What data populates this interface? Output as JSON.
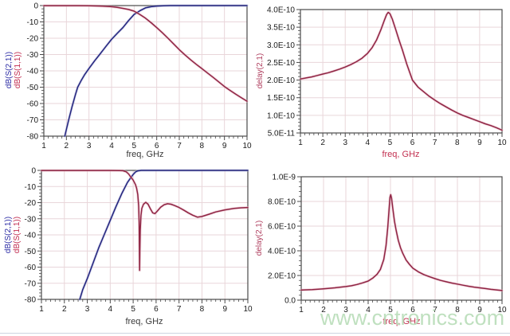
{
  "watermark": {
    "text": "www.cntronics.com",
    "color": "#b9ddb9"
  },
  "chart_data": [
    {
      "type": "line",
      "title": "",
      "xlabel": "freq, GHz",
      "xlabel_color": "#3a3a3a",
      "ylabels": [
        {
          "text": "dB(S(2,1))",
          "color": "#2a2aa4"
        },
        {
          "text": "dB(S(1,1))",
          "color": "#c02a4e"
        }
      ],
      "xlim": [
        1,
        10
      ],
      "ylim": [
        -80,
        0
      ],
      "xticks": [
        1,
        2,
        3,
        4,
        5,
        6,
        7,
        8,
        9,
        10
      ],
      "xtick_labels": [
        "1",
        "2",
        "3",
        "4",
        "5",
        "6",
        "7",
        "8",
        "9",
        "10"
      ],
      "yticks": [
        0,
        -10,
        -20,
        -30,
        -40,
        -50,
        -60,
        -70,
        -80
      ],
      "ytick_labels": [
        "0",
        "-10",
        "-20",
        "-30",
        "-40",
        "-50",
        "-60",
        "-70",
        "-80"
      ],
      "xminor": 0.2,
      "yminor": 2,
      "grid": true,
      "legend": "none",
      "series": [
        {
          "name": "dB(S(2,1))",
          "color": "#23237d",
          "halo": "#b0b6dc",
          "points": [
            [
              1.93,
              -80
            ],
            [
              2.1,
              -70
            ],
            [
              2.25,
              -62
            ],
            [
              2.4,
              -54.5
            ],
            [
              2.5,
              -50
            ],
            [
              2.65,
              -46
            ],
            [
              2.8,
              -42.5
            ],
            [
              3,
              -38.5
            ],
            [
              3.25,
              -33.8
            ],
            [
              3.5,
              -29.5
            ],
            [
              3.75,
              -25
            ],
            [
              4,
              -20.7
            ],
            [
              4.25,
              -17
            ],
            [
              4.5,
              -13.5
            ],
            [
              4.75,
              -9.2
            ],
            [
              5,
              -5.4
            ],
            [
              5.25,
              -3.2
            ],
            [
              5.5,
              -1.4
            ],
            [
              5.75,
              -0.7
            ],
            [
              6,
              -0.3
            ],
            [
              6.3,
              -0.1
            ],
            [
              6.6,
              0
            ],
            [
              7,
              0
            ],
            [
              8,
              0
            ],
            [
              9,
              0
            ],
            [
              10,
              0
            ]
          ]
        },
        {
          "name": "dB(S(1,1))",
          "color": "#8e2443",
          "halo": "#e7afc0",
          "points": [
            [
              1,
              -0.05
            ],
            [
              2,
              -0.05
            ],
            [
              2.5,
              -0.05
            ],
            [
              3,
              -0.1
            ],
            [
              3.5,
              -0.3
            ],
            [
              4,
              -0.7
            ],
            [
              4.25,
              -1.1
            ],
            [
              4.5,
              -1.7
            ],
            [
              4.75,
              -2.4
            ],
            [
              5,
              -3.4
            ],
            [
              5.25,
              -5.4
            ],
            [
              5.5,
              -7.7
            ],
            [
              5.75,
              -10.5
            ],
            [
              6,
              -13.5
            ],
            [
              6.25,
              -16.7
            ],
            [
              6.5,
              -20
            ],
            [
              6.75,
              -23.5
            ],
            [
              7,
              -27
            ],
            [
              7.25,
              -30.2
            ],
            [
              7.5,
              -33.2
            ],
            [
              7.75,
              -36
            ],
            [
              8,
              -38.6
            ],
            [
              8.25,
              -41.3
            ],
            [
              8.5,
              -44
            ],
            [
              8.75,
              -46.8
            ],
            [
              9,
              -49.6
            ],
            [
              9.25,
              -52
            ],
            [
              9.5,
              -54.3
            ],
            [
              9.75,
              -56.5
            ],
            [
              10,
              -58.6
            ]
          ]
        }
      ]
    },
    {
      "type": "line",
      "title": "",
      "xlabel": "freq, GHz",
      "xlabel_color": "#c23050",
      "ylabels": [
        {
          "text": "delay(2,1)",
          "color": "#b04060"
        }
      ],
      "xlim": [
        1,
        10
      ],
      "ylim": [
        5e-11,
        4e-10
      ],
      "xticks": [
        1,
        2,
        3,
        4,
        5,
        6,
        7,
        8,
        9,
        10
      ],
      "xtick_labels": [
        "1",
        "2",
        "3",
        "4",
        "5",
        "6",
        "7",
        "8",
        "9",
        "10"
      ],
      "yticks": [
        4e-10,
        3.5e-10,
        3e-10,
        2.5e-10,
        2e-10,
        1.5e-10,
        1e-10,
        5e-11
      ],
      "ytick_labels": [
        "4.0E-10",
        "3.5E-10",
        "3.0E-10",
        "2.5E-10",
        "2.0E-10",
        "1.5E-10",
        "1.0E-10",
        "5.0E-11"
      ],
      "xminor": 0.2,
      "yminor": 1e-11,
      "grid": true,
      "legend": "none",
      "series": [
        {
          "name": "delay(2,1)",
          "color": "#8e2443",
          "halo": "#e7afc0",
          "points": [
            [
              1,
              2.03e-10
            ],
            [
              1.25,
              2.06e-10
            ],
            [
              1.5,
              2.09e-10
            ],
            [
              1.75,
              2.13e-10
            ],
            [
              2,
              2.17e-10
            ],
            [
              2.25,
              2.21e-10
            ],
            [
              2.5,
              2.26e-10
            ],
            [
              2.75,
              2.31e-10
            ],
            [
              3,
              2.37e-10
            ],
            [
              3.25,
              2.44e-10
            ],
            [
              3.5,
              2.52e-10
            ],
            [
              3.75,
              2.62e-10
            ],
            [
              4,
              2.76e-10
            ],
            [
              4.2,
              2.92e-10
            ],
            [
              4.4,
              3.14e-10
            ],
            [
              4.6,
              3.44e-10
            ],
            [
              4.75,
              3.7e-10
            ],
            [
              4.85,
              3.86e-10
            ],
            [
              4.92,
              3.92e-10
            ],
            [
              5,
              3.88e-10
            ],
            [
              5.1,
              3.73e-10
            ],
            [
              5.25,
              3.44e-10
            ],
            [
              5.4,
              3.14e-10
            ],
            [
              5.55,
              2.86e-10
            ],
            [
              5.75,
              2.45e-10
            ],
            [
              6,
              2e-10
            ],
            [
              6.25,
              1.8e-10
            ],
            [
              6.5,
              1.67e-10
            ],
            [
              6.75,
              1.54e-10
            ],
            [
              7,
              1.43e-10
            ],
            [
              7.25,
              1.33e-10
            ],
            [
              7.5,
              1.24e-10
            ],
            [
              7.75,
              1.15e-10
            ],
            [
              8,
              1.07e-10
            ],
            [
              8.25,
              1e-10
            ],
            [
              8.5,
              9.4e-11
            ],
            [
              8.75,
              8.8e-11
            ],
            [
              9,
              8.2e-11
            ],
            [
              9.25,
              7.6e-11
            ],
            [
              9.5,
              7.1e-11
            ],
            [
              9.75,
              6.5e-11
            ],
            [
              10,
              5.8e-11
            ]
          ]
        }
      ]
    },
    {
      "type": "line",
      "title": "",
      "xlabel": "freq, GHz",
      "xlabel_color": "#3a3a3a",
      "ylabels": [
        {
          "text": "dB(S(2,1))",
          "color": "#2a2aa4"
        },
        {
          "text": "dB(S(1,1))",
          "color": "#c02a4e"
        }
      ],
      "xlim": [
        1,
        10
      ],
      "ylim": [
        -80,
        0
      ],
      "xticks": [
        1,
        2,
        3,
        4,
        5,
        6,
        7,
        8,
        9,
        10
      ],
      "xtick_labels": [
        "1",
        "2",
        "3",
        "4",
        "5",
        "6",
        "7",
        "8",
        "9",
        "10"
      ],
      "yticks": [
        0,
        -10,
        -20,
        -30,
        -40,
        -50,
        -60,
        -70,
        -80
      ],
      "ytick_labels": [
        "0",
        "-10",
        "-20",
        "-30",
        "-40",
        "-50",
        "-60",
        "-70",
        "-80"
      ],
      "xminor": 0.2,
      "yminor": 2,
      "grid": true,
      "legend": "none",
      "series": [
        {
          "name": "dB(S(2,1))",
          "color": "#23237d",
          "halo": "#b0b6dc",
          "points": [
            [
              2.67,
              -80
            ],
            [
              2.8,
              -74
            ],
            [
              3,
              -67
            ],
            [
              3.25,
              -57.5
            ],
            [
              3.5,
              -48
            ],
            [
              3.75,
              -39.5
            ],
            [
              4,
              -31
            ],
            [
              4.25,
              -22.5
            ],
            [
              4.5,
              -14.5
            ],
            [
              4.75,
              -7.5
            ],
            [
              4.9,
              -4.5
            ],
            [
              5,
              -2.5
            ],
            [
              5.1,
              -1
            ],
            [
              5.2,
              -0.3
            ],
            [
              5.35,
              0
            ],
            [
              6,
              0
            ],
            [
              7,
              0
            ],
            [
              8,
              0
            ],
            [
              9,
              0
            ],
            [
              10,
              0
            ]
          ]
        },
        {
          "name": "dB(S(1,1))",
          "color": "#8e2443",
          "halo": "#e7afc0",
          "points": [
            [
              1,
              -0.05
            ],
            [
              2,
              -0.05
            ],
            [
              3,
              -0.05
            ],
            [
              4,
              -0.05
            ],
            [
              4.4,
              -0.1
            ],
            [
              4.55,
              -0.2
            ],
            [
              4.7,
              -0.9
            ],
            [
              4.8,
              -2.2
            ],
            [
              4.9,
              -4.2
            ],
            [
              5,
              -6
            ],
            [
              5.1,
              -8.8
            ],
            [
              5.15,
              -11
            ],
            [
              5.2,
              -15
            ],
            [
              5.24,
              -22
            ],
            [
              5.26,
              -32
            ],
            [
              5.27,
              -47
            ],
            [
              5.28,
              -62
            ],
            [
              5.29,
              -50
            ],
            [
              5.31,
              -37
            ],
            [
              5.34,
              -28
            ],
            [
              5.38,
              -23.5
            ],
            [
              5.45,
              -21
            ],
            [
              5.55,
              -19.8
            ],
            [
              5.65,
              -21
            ],
            [
              5.75,
              -23.8
            ],
            [
              5.85,
              -26.3
            ],
            [
              5.95,
              -26.8
            ],
            [
              6.05,
              -25.3
            ],
            [
              6.2,
              -22.8
            ],
            [
              6.35,
              -21.3
            ],
            [
              6.5,
              -20.7
            ],
            [
              6.65,
              -21
            ],
            [
              6.8,
              -21.8
            ],
            [
              7,
              -23
            ],
            [
              7.2,
              -24.6
            ],
            [
              7.4,
              -26.3
            ],
            [
              7.6,
              -27.8
            ],
            [
              7.8,
              -29
            ],
            [
              8,
              -28.6
            ],
            [
              8.3,
              -27.2
            ],
            [
              8.6,
              -25.8
            ],
            [
              9,
              -24.5
            ],
            [
              9.4,
              -23.6
            ],
            [
              9.7,
              -23.2
            ],
            [
              10,
              -23
            ]
          ]
        }
      ]
    },
    {
      "type": "line",
      "title": "",
      "xlabel": "freq, GHz",
      "xlabel_color": "#c23050",
      "ylabels": [
        {
          "text": "delay(2,1)",
          "color": "#b04060"
        }
      ],
      "xlim": [
        1,
        10
      ],
      "ylim": [
        0,
        1e-09
      ],
      "xticks": [
        1,
        2,
        3,
        4,
        5,
        6,
        7,
        8,
        9,
        10
      ],
      "xtick_labels": [
        "1",
        "2",
        "3",
        "4",
        "5",
        "6",
        "7",
        "8",
        "9",
        "10"
      ],
      "yticks": [
        1e-09,
        8e-10,
        6e-10,
        4e-10,
        2e-10,
        0
      ],
      "ytick_labels": [
        "1.0E-9",
        "8.0E-10",
        "6.0E-10",
        "4.0E-10",
        "2.0E-10",
        "0.0"
      ],
      "xminor": 0.2,
      "yminor": 4e-11,
      "grid": true,
      "legend": "none",
      "series": [
        {
          "name": "delay(2,1)",
          "color": "#8e2443",
          "halo": "#e7afc0",
          "points": [
            [
              1,
              8.2e-11
            ],
            [
              1.5,
              8.6e-11
            ],
            [
              2,
              9.2e-11
            ],
            [
              2.5,
              1e-10
            ],
            [
              3,
              1.1e-10
            ],
            [
              3.25,
              1.17e-10
            ],
            [
              3.5,
              1.27e-10
            ],
            [
              3.75,
              1.4e-10
            ],
            [
              4,
              1.55e-10
            ],
            [
              4.2,
              1.78e-10
            ],
            [
              4.4,
              2.1e-10
            ],
            [
              4.55,
              2.5e-10
            ],
            [
              4.7,
              3.3e-10
            ],
            [
              4.8,
              4.4e-10
            ],
            [
              4.88,
              5.9e-10
            ],
            [
              4.94,
              7.4e-10
            ],
            [
              4.98,
              8.35e-10
            ],
            [
              5.01,
              8.55e-10
            ],
            [
              5.05,
              8.25e-10
            ],
            [
              5.1,
              7.5e-10
            ],
            [
              5.18,
              6.4e-10
            ],
            [
              5.25,
              5.7e-10
            ],
            [
              5.35,
              4.85e-10
            ],
            [
              5.45,
              4.25e-10
            ],
            [
              5.55,
              3.8e-10
            ],
            [
              5.7,
              3.25e-10
            ],
            [
              5.85,
              2.9e-10
            ],
            [
              6,
              2.6e-10
            ],
            [
              6.25,
              2.3e-10
            ],
            [
              6.5,
              2.07e-10
            ],
            [
              6.75,
              1.9e-10
            ],
            [
              7,
              1.74e-10
            ],
            [
              7.25,
              1.6e-10
            ],
            [
              7.5,
              1.49e-10
            ],
            [
              7.75,
              1.39e-10
            ],
            [
              8,
              1.3e-10
            ],
            [
              8.25,
              1.21e-10
            ],
            [
              8.5,
              1.13e-10
            ],
            [
              8.75,
              1.06e-10
            ],
            [
              9,
              1e-10
            ],
            [
              9.25,
              9.4e-11
            ],
            [
              9.5,
              8.8e-11
            ],
            [
              9.75,
              8.3e-11
            ],
            [
              10,
              7.8e-11
            ]
          ]
        }
      ]
    }
  ],
  "style": {
    "grid_color": "#e9d6da",
    "frame_color": "#4a4a4a",
    "tick_color": "#4a4a4a",
    "tick_label_color": "#1a1a1a"
  }
}
